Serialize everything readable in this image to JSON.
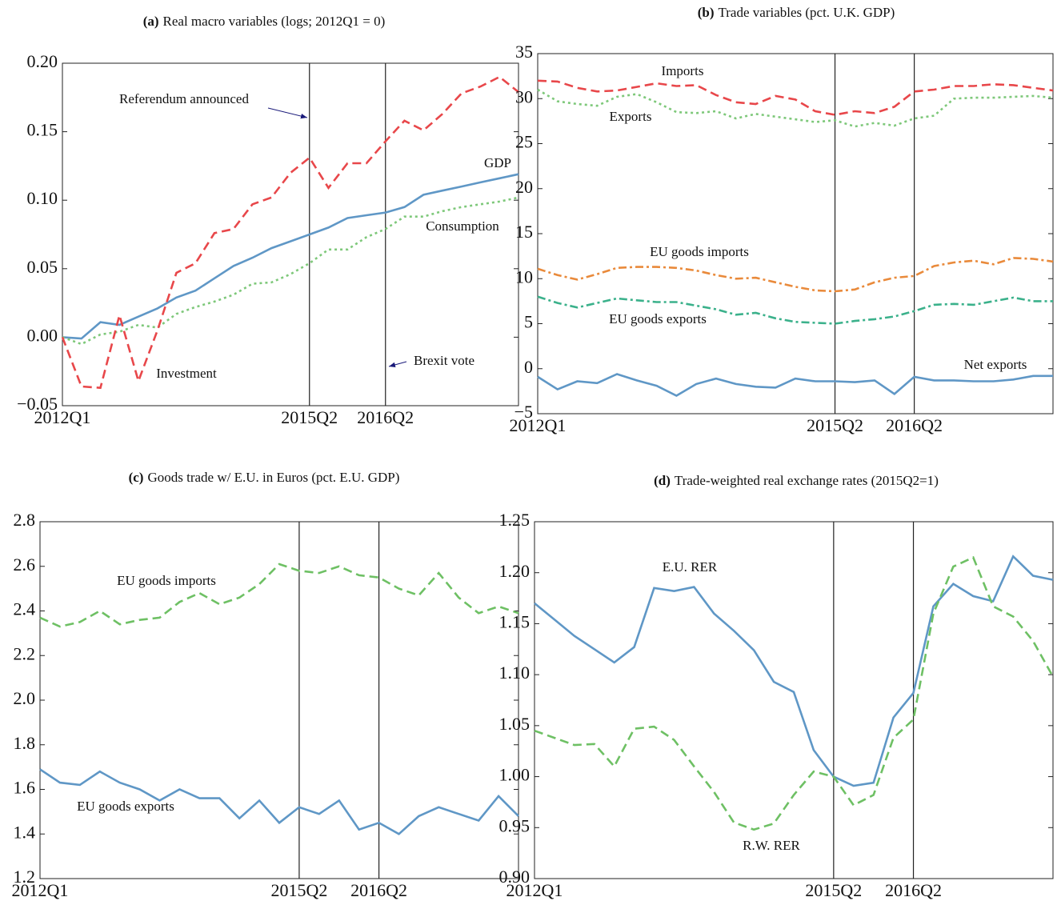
{
  "chart_data": [
    {
      "type": "line",
      "title_tag": "(a)",
      "title": "Real macro variables (logs; 2012Q1 = 0)",
      "categories": [
        "2012Q1",
        null,
        null,
        null,
        null,
        null,
        null,
        null,
        null,
        null,
        null,
        null,
        null,
        "2015Q2",
        null,
        null,
        null,
        "2016Q2",
        null,
        null,
        null,
        null,
        null,
        null,
        null
      ],
      "ylim": [
        -0.05,
        0.2
      ],
      "yticks": [
        {
          "value": -0.05,
          "label": "−0.05"
        },
        {
          "value": 0,
          "label": "0.00"
        },
        0.05,
        {
          "value": 0.1,
          "label": "0.10"
        },
        0.15,
        {
          "value": 0.2,
          "label": "0.20"
        }
      ],
      "grid": false,
      "event_lines": [
        "2015Q2",
        "2016Q2"
      ],
      "annotations": [
        {
          "text": "Referendum announced"
        },
        {
          "text": "Brexit vote"
        }
      ],
      "series": [
        {
          "name": "GDP",
          "color": "#5f97c6",
          "style": "solid",
          "values": [
            0,
            -0.001,
            0.011,
            0.009,
            0.015,
            0.021,
            0.029,
            0.034,
            0.043,
            0.052,
            0.058,
            0.065,
            0.07,
            0.075,
            0.08,
            0.087,
            0.089,
            0.091,
            0.095,
            0.104,
            0.107,
            0.11,
            0.113,
            0.116,
            0.119
          ]
        },
        {
          "name": "Consumption",
          "color": "#7ec87a",
          "style": "dotted",
          "values": [
            0,
            -0.005,
            0.002,
            0.004,
            0.009,
            0.007,
            0.017,
            0.022,
            0.026,
            0.031,
            0.039,
            0.04,
            0.046,
            0.054,
            0.064,
            0.064,
            0.073,
            0.079,
            0.088,
            0.088,
            0.092,
            0.095,
            0.097,
            0.099,
            0.102
          ]
        },
        {
          "name": "Investment",
          "color": "#e8474a",
          "style": "dashed",
          "values": [
            0,
            -0.036,
            -0.037,
            0.016,
            -0.032,
            0.005,
            0.047,
            0.054,
            0.076,
            0.079,
            0.097,
            0.102,
            0.12,
            0.131,
            0.109,
            0.127,
            0.127,
            0.143,
            0.158,
            0.151,
            0.163,
            0.178,
            0.183,
            0.19,
            0.179
          ]
        }
      ]
    },
    {
      "type": "line",
      "title_tag": "(b)",
      "title": "Trade variables (pct. U.K. GDP)",
      "categories": [
        "2012Q1",
        null,
        null,
        null,
        null,
        null,
        null,
        null,
        null,
        null,
        null,
        null,
        null,
        null,
        null,
        "2015Q2",
        null,
        null,
        null,
        "2016Q2",
        null,
        null,
        null,
        null,
        null,
        null,
        null
      ],
      "ylim": [
        -5,
        35
      ],
      "yticks": [
        {
          "value": -5,
          "label": "−5"
        },
        0,
        5,
        10,
        15,
        20,
        25,
        30,
        35
      ],
      "grid": false,
      "event_lines": [
        "2015Q2",
        "2016Q2"
      ],
      "series": [
        {
          "name": "Imports",
          "color": "#e8474a",
          "style": "dashed",
          "values": [
            32.0,
            31.9,
            31.2,
            30.8,
            30.9,
            31.3,
            31.7,
            31.4,
            31.5,
            30.4,
            29.6,
            29.4,
            30.3,
            29.9,
            28.6,
            28.2,
            28.6,
            28.4,
            29.1,
            30.8,
            31.0,
            31.4,
            31.4,
            31.6,
            31.5,
            31.2,
            30.9
          ]
        },
        {
          "name": "Exports",
          "color": "#7ec87a",
          "style": "dotted",
          "values": [
            31.0,
            29.7,
            29.4,
            29.2,
            30.2,
            30.5,
            29.6,
            28.5,
            28.4,
            28.6,
            27.8,
            28.3,
            28.0,
            27.7,
            27.4,
            27.6,
            26.9,
            27.3,
            27.0,
            27.8,
            28.1,
            30.0,
            30.1,
            30.1,
            30.2,
            30.3,
            30.1
          ]
        },
        {
          "name": "EU goods imports",
          "color": "#e98a3b",
          "style": "dashdot",
          "values": [
            11.1,
            10.4,
            9.9,
            10.5,
            11.2,
            11.3,
            11.3,
            11.2,
            10.9,
            10.4,
            10.0,
            10.1,
            9.6,
            9.1,
            8.7,
            8.6,
            8.8,
            9.6,
            10.1,
            10.3,
            11.4,
            11.8,
            12.0,
            11.6,
            12.3,
            12.2,
            11.9
          ]
        },
        {
          "name": "EU goods exports",
          "color": "#3bb18b",
          "style": "dashdot",
          "values": [
            8.0,
            7.3,
            6.8,
            7.3,
            7.8,
            7.6,
            7.4,
            7.4,
            7.0,
            6.6,
            6.0,
            6.2,
            5.6,
            5.2,
            5.1,
            5.0,
            5.3,
            5.5,
            5.8,
            6.4,
            7.1,
            7.2,
            7.1,
            7.5,
            7.9,
            7.5,
            7.5
          ]
        },
        {
          "name": "Net exports",
          "color": "#5f97c6",
          "style": "solid",
          "values": [
            -0.9,
            -2.3,
            -1.4,
            -1.6,
            -0.6,
            -1.3,
            -1.9,
            -3.0,
            -1.7,
            -1.1,
            -1.7,
            -2.0,
            -2.1,
            -1.1,
            -1.4,
            -1.4,
            -1.5,
            -1.3,
            -2.8,
            -0.9,
            -1.3,
            -1.3,
            -1.4,
            -1.4,
            -1.2,
            -0.8,
            -0.8
          ]
        }
      ]
    },
    {
      "type": "line",
      "title_tag": "(c)",
      "title": "Goods trade w/ E.U. in Euros (pct. E.U. GDP)",
      "categories": [
        "2012Q1",
        null,
        null,
        null,
        null,
        null,
        null,
        null,
        null,
        null,
        null,
        null,
        null,
        "2015Q2",
        null,
        null,
        null,
        "2016Q2",
        null,
        null,
        null,
        null,
        null,
        null,
        null
      ],
      "ylim": [
        1.2,
        2.8
      ],
      "yticks": [
        1.2,
        1.4,
        1.6,
        1.8,
        {
          "value": 2,
          "label": "2.0"
        },
        2.2,
        2.4,
        2.6,
        2.8
      ],
      "grid": false,
      "event_lines": [
        "2015Q2",
        "2016Q2"
      ],
      "series": [
        {
          "name": "EU goods imports",
          "color": "#6ec064",
          "style": "dashed",
          "values": [
            2.37,
            2.33,
            2.35,
            2.4,
            2.34,
            2.36,
            2.37,
            2.44,
            2.48,
            2.43,
            2.46,
            2.52,
            2.61,
            2.58,
            2.57,
            2.6,
            2.56,
            2.55,
            2.5,
            2.47,
            2.57,
            2.46,
            2.39,
            2.42,
            2.39
          ]
        },
        {
          "name": "EU goods exports",
          "color": "#5f97c6",
          "style": "solid",
          "values": [
            1.69,
            1.63,
            1.62,
            1.68,
            1.63,
            1.6,
            1.55,
            1.6,
            1.56,
            1.56,
            1.47,
            1.55,
            1.45,
            1.52,
            1.49,
            1.55,
            1.42,
            1.45,
            1.4,
            1.48,
            1.52,
            1.49,
            1.46,
            1.57,
            1.48
          ]
        }
      ]
    },
    {
      "type": "line",
      "title_tag": "(d)",
      "title": "Trade-weighted real exchange rates (2015Q2=1)",
      "categories": [
        "2012Q1",
        null,
        null,
        null,
        null,
        null,
        null,
        null,
        null,
        null,
        null,
        null,
        null,
        null,
        null,
        "2015Q2",
        null,
        null,
        null,
        "2016Q2",
        null,
        null,
        null,
        null,
        null,
        null,
        null
      ],
      "ylim": [
        0.9,
        1.25
      ],
      "yticks": [
        {
          "value": 0.9,
          "label": "0.90"
        },
        0.95,
        {
          "value": 1,
          "label": "1.00"
        },
        1.05,
        {
          "value": 1.1,
          "label": "1.10"
        },
        1.15,
        {
          "value": 1.2,
          "label": "1.20"
        },
        1.25
      ],
      "grid": false,
      "event_lines": [
        "2015Q2",
        "2016Q2"
      ],
      "series": [
        {
          "name": "E.U. RER",
          "color": "#5f97c6",
          "style": "solid",
          "values": [
            1.17,
            1.154,
            1.138,
            1.125,
            1.112,
            1.127,
            1.185,
            1.182,
            1.186,
            1.16,
            1.143,
            1.124,
            1.093,
            1.083,
            1.026,
            1.0,
            0.991,
            0.994,
            1.058,
            1.082,
            1.167,
            1.189,
            1.177,
            1.172,
            1.216,
            1.197,
            1.193
          ]
        },
        {
          "name": "R.W. RER",
          "color": "#6ec064",
          "style": "dashed",
          "values": [
            1.045,
            1.038,
            1.031,
            1.032,
            1.01,
            1.047,
            1.049,
            1.036,
            1.01,
            0.985,
            0.955,
            0.948,
            0.954,
            0.982,
            1.005,
            1.0,
            0.972,
            0.982,
            1.038,
            1.056,
            1.16,
            1.206,
            1.215,
            1.167,
            1.157,
            1.133,
            1.098
          ]
        }
      ]
    }
  ]
}
